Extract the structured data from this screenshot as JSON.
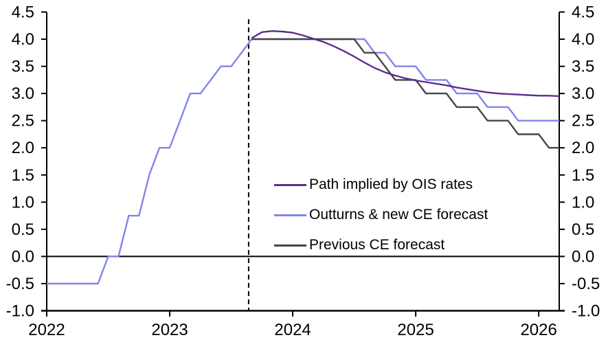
{
  "chart_data": {
    "type": "line",
    "title": "",
    "xlabel": "",
    "ylabel": "",
    "x_axis": {
      "unit": "months",
      "start_year": 2022,
      "months_total": 50,
      "year_ticks": [
        2022,
        2023,
        2024,
        2025,
        2026
      ]
    },
    "y_axis": {
      "min": -1.0,
      "max": 4.5,
      "tick_step": 0.5,
      "ticks": [
        4.5,
        4.0,
        3.5,
        3.0,
        2.5,
        2.0,
        1.5,
        1.0,
        0.5,
        0.0,
        -0.5,
        -1.0
      ],
      "labelled_both_sides": true
    },
    "zero_line": true,
    "forecast_divider": {
      "month_index": 19.7,
      "style": "dashed",
      "color": "#000000"
    },
    "series": [
      {
        "name": "Path implied by OIS rates",
        "color": "#5b2d8e",
        "start_month": 20,
        "values": [
          4.02,
          4.13,
          4.15,
          4.14,
          4.12,
          4.07,
          4.01,
          3.95,
          3.87,
          3.78,
          3.68,
          3.57,
          3.47,
          3.39,
          3.33,
          3.28,
          3.24,
          3.21,
          3.18,
          3.15,
          3.11,
          3.08,
          3.05,
          3.02,
          3.0,
          2.99,
          2.98,
          2.97,
          2.96,
          2.96,
          2.95
        ]
      },
      {
        "name": "Outturns & new CE forecast",
        "color": "#8184ea",
        "start_month": 0,
        "values": [
          -0.5,
          -0.5,
          -0.5,
          -0.5,
          -0.5,
          -0.5,
          0,
          0,
          0.75,
          0.75,
          1.5,
          2,
          2,
          2.5,
          3,
          3,
          3.25,
          3.5,
          3.5,
          3.75,
          4,
          4,
          4,
          4,
          4,
          4,
          4,
          4,
          4,
          4,
          4,
          4,
          3.75,
          3.75,
          3.5,
          3.5,
          3.5,
          3.25,
          3.25,
          3.25,
          3,
          3,
          3,
          2.75,
          2.75,
          2.75,
          2.5,
          2.5,
          2.5,
          2.5,
          2.5
        ]
      },
      {
        "name": "Previous CE forecast",
        "color": "#454545",
        "start_month": 20,
        "values": [
          4,
          4,
          4,
          4,
          4,
          4,
          4,
          4,
          4,
          4,
          4,
          3.75,
          3.75,
          3.5,
          3.25,
          3.25,
          3.25,
          3,
          3,
          3,
          2.75,
          2.75,
          2.75,
          2.5,
          2.5,
          2.5,
          2.25,
          2.25,
          2.25,
          2,
          2
        ]
      }
    ],
    "colors": {
      "axis": "#000000",
      "background": "#ffffff"
    }
  }
}
